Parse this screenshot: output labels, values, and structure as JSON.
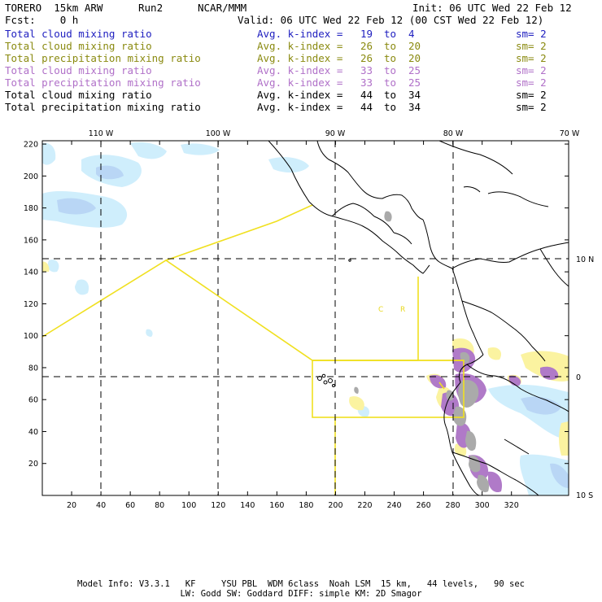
{
  "header": {
    "model": "TORERO  15km ARW",
    "run": "Run2",
    "center": "NCAR/MMM",
    "init": "Init: 06 UTC Wed 22 Feb 12",
    "fcst": "Fcst:    0 h",
    "valid": "Valid: 06 UTC Wed 22 Feb 12 (00 CST Wed 22 Feb 12)"
  },
  "legend": [
    {
      "field": "Total cloud mixing ratio",
      "index": "Avg. k-index =",
      "k1": "19",
      "to": "to",
      "k2": "4",
      "sm": "sm= 2",
      "color": "#2020c0"
    },
    {
      "field": "Total cloud mixing ratio",
      "index": "Avg. k-index =",
      "k1": "26",
      "to": "to",
      "k2": "20",
      "sm": "sm= 2",
      "color": "#8a8a10"
    },
    {
      "field": "Total precipitation mixing ratio",
      "index": "Avg. k-index =",
      "k1": "26",
      "to": "to",
      "k2": "20",
      "sm": "sm= 2",
      "color": "#8a8a10"
    },
    {
      "field": "Total cloud mixing ratio",
      "index": "Avg. k-index =",
      "k1": "33",
      "to": "to",
      "k2": "25",
      "sm": "sm= 2",
      "color": "#b070c8"
    },
    {
      "field": "Total precipitation mixing ratio",
      "index": "Avg. k-index =",
      "k1": "33",
      "to": "to",
      "k2": "25",
      "sm": "sm= 2",
      "color": "#b070c8"
    },
    {
      "field": "Total cloud mixing ratio",
      "index": "Avg. k-index =",
      "k1": "44",
      "to": "to",
      "k2": "34",
      "sm": "sm= 2",
      "color": "#000000"
    },
    {
      "field": "Total precipitation mixing ratio",
      "index": "Avg. k-index =",
      "k1": "44",
      "to": "to",
      "k2": "34",
      "sm": "sm= 2",
      "color": "#000000"
    }
  ],
  "map": {
    "lon_labels": [
      "110 W",
      "100 W",
      "90 W",
      "80 W",
      "70 W"
    ],
    "lat_labels": [
      "10 N",
      "0",
      "10 S"
    ],
    "y_ticks": [
      "220",
      "200",
      "180",
      "160",
      "140",
      "120",
      "100",
      "80",
      "60",
      "40",
      "20"
    ],
    "x_ticks": [
      "20",
      "40",
      "60",
      "80",
      "100",
      "120",
      "140",
      "160",
      "180",
      "200",
      "220",
      "240",
      "260",
      "280",
      "300",
      "320"
    ],
    "region_letters": [
      "C",
      "R"
    ],
    "colors": {
      "cloud_light": "#cfeefc",
      "cloud_mid": "#b9d6f5",
      "precip_yellow": "#fbf3a0",
      "precip_purple": "#b07ac8",
      "precip_gray": "#aaaaaa",
      "domain_box": "#f0e020"
    }
  },
  "footer": {
    "line1": "Model Info: V3.3.1   KF     YSU PBL  WDM 6class  Noah LSM  15 km,   44 levels,   90 sec",
    "line2": "LW: Godd SW: Goddard DIFF: simple KM: 2D Smagor"
  }
}
